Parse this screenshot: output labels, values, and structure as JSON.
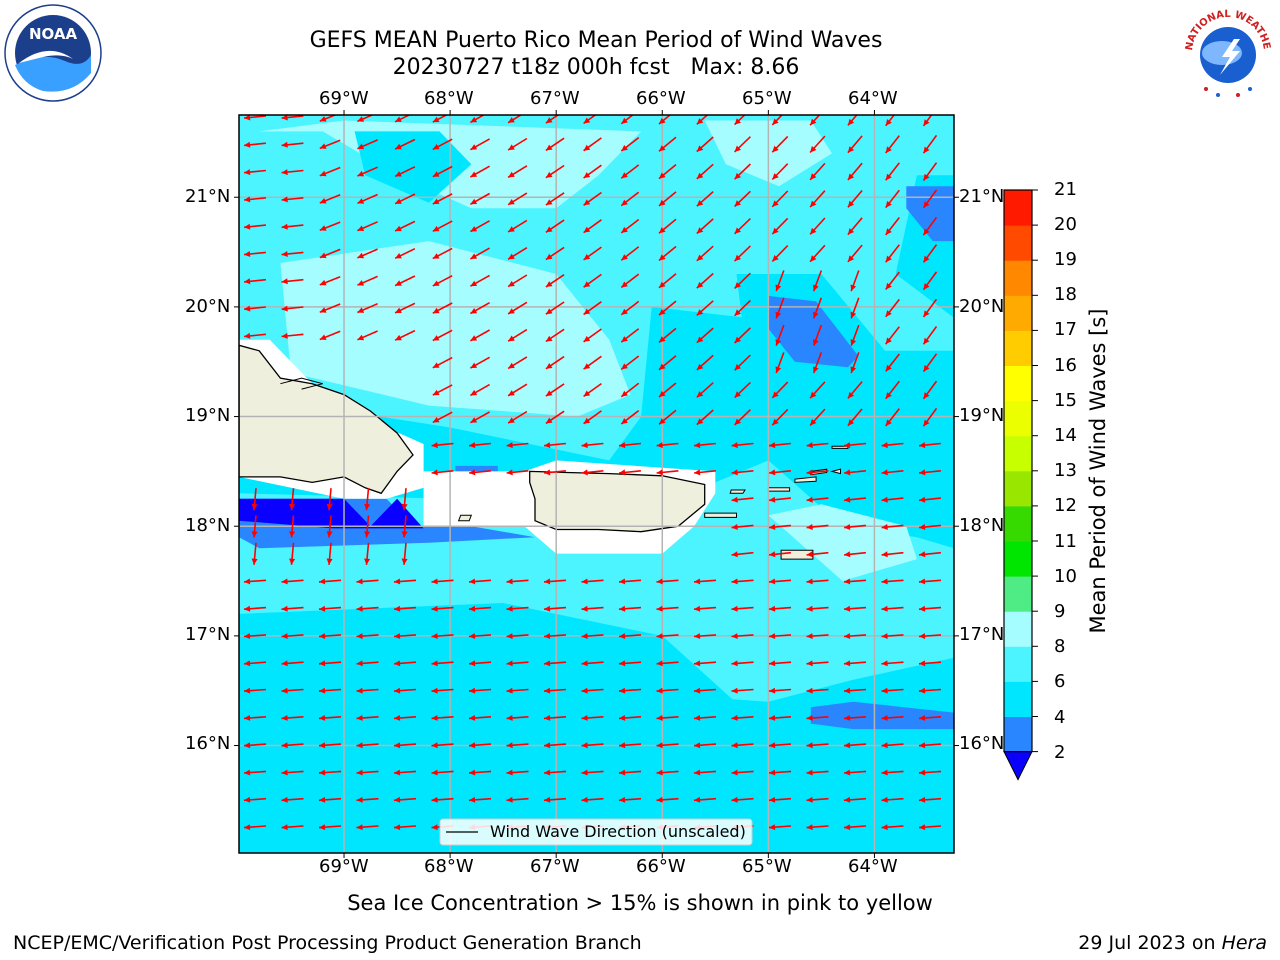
{
  "header": {
    "title_line1": "GEFS MEAN Puerto Rico Mean Period of Wind Waves",
    "title_line2": "20230727 t18z 000h fcst   Max: 8.66"
  },
  "logos": {
    "noaa_text": "NOAA",
    "nws_text": "NATIONAL WEATHER SERVICE"
  },
  "map": {
    "lon_labels": [
      "69°W",
      "68°W",
      "67°W",
      "66°W",
      "65°W",
      "64°W"
    ],
    "lat_labels": [
      "21°N",
      "20°N",
      "19°N",
      "18°N",
      "17°N",
      "16°N"
    ],
    "legend_label": "Wind Wave Direction (unscaled)",
    "arrow_color": "#ff0000",
    "land_color": "#efefde",
    "gridline_color": "#b4b4b4"
  },
  "colorbar": {
    "label": "Mean Period of Wind Waves [s]",
    "levels": [
      "2",
      "4",
      "6",
      "8",
      "9",
      "10",
      "11",
      "12",
      "13",
      "14",
      "15",
      "16",
      "17",
      "18",
      "19",
      "20",
      "21"
    ],
    "colors": [
      "#2a86ff",
      "#00e6ff",
      "#4cf4ff",
      "#a6fdff",
      "#4fec85",
      "#00e600",
      "#36d900",
      "#99e600",
      "#c8ff00",
      "#ecff00",
      "#ffff00",
      "#ffcc00",
      "#ffaa00",
      "#ff8800",
      "#ff4a00",
      "#ff1a00"
    ],
    "extend_color": "#0a00ff"
  },
  "footer": {
    "sea_ice_note": "Sea Ice Concentration > 15% is shown in pink to yellow",
    "branch": "NCEP/EMC/Verification Post Processing Product Generation Branch",
    "date_prefix": "29 Jul 2023 on ",
    "machine": "Hera"
  }
}
